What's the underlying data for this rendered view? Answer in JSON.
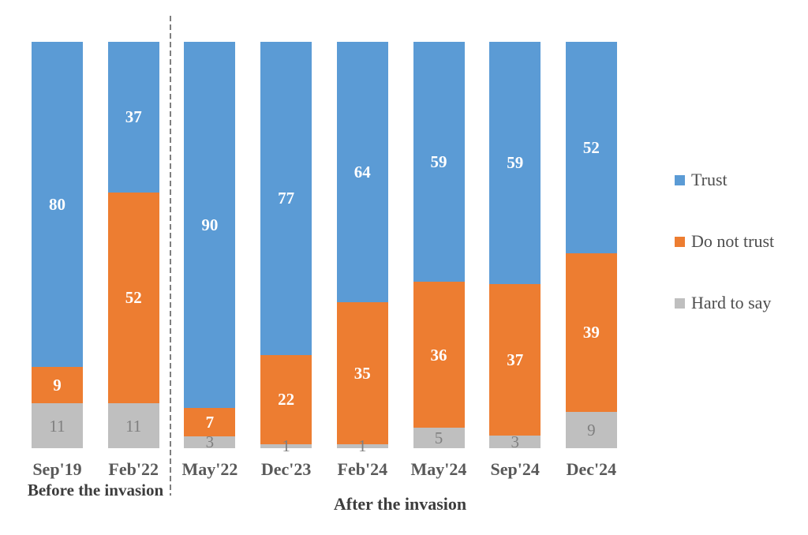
{
  "chart_data": {
    "type": "bar",
    "stacked": true,
    "orientation": "vertical",
    "title": "",
    "xlabel": "",
    "ylabel": "",
    "ylim": [
      0,
      100
    ],
    "grid": false,
    "axes_visible": false,
    "legend_position": "right",
    "value_labels": "inside-center",
    "categories": [
      "Sep'19",
      "Feb'22",
      "May'22",
      "Dec'23",
      "Feb'24",
      "May'24",
      "Sep'24",
      "Dec'24"
    ],
    "series": [
      {
        "name": "Trust",
        "color": "#5B9BD5",
        "label_color": "#FFFFFF",
        "values": [
          80,
          37,
          90,
          77,
          64,
          59,
          59,
          52
        ]
      },
      {
        "name": "Do not trust",
        "color": "#ED7D31",
        "label_color": "#FFFFFF",
        "values": [
          9,
          52,
          7,
          22,
          35,
          36,
          37,
          39
        ]
      },
      {
        "name": "Hard to say",
        "color": "#BFBFBF",
        "label_color": "#7F7F7F",
        "values": [
          11,
          11,
          3,
          1,
          1,
          5,
          3,
          9
        ]
      }
    ],
    "group_labels": [
      {
        "label": "Before the invasion",
        "categories": [
          "Sep'19",
          "Feb'22"
        ]
      },
      {
        "label": "After the invasion",
        "categories": [
          "May'22",
          "Dec'23",
          "Feb'24",
          "May'24",
          "Sep'24",
          "Dec'24"
        ]
      }
    ],
    "separator": {
      "style": "dashed-vertical-line",
      "after_category_index": 1,
      "color": "#7F7F7F"
    }
  },
  "legend": {
    "items": [
      {
        "label": "Trust"
      },
      {
        "label": "Do not trust"
      },
      {
        "label": "Hard to say"
      }
    ]
  }
}
